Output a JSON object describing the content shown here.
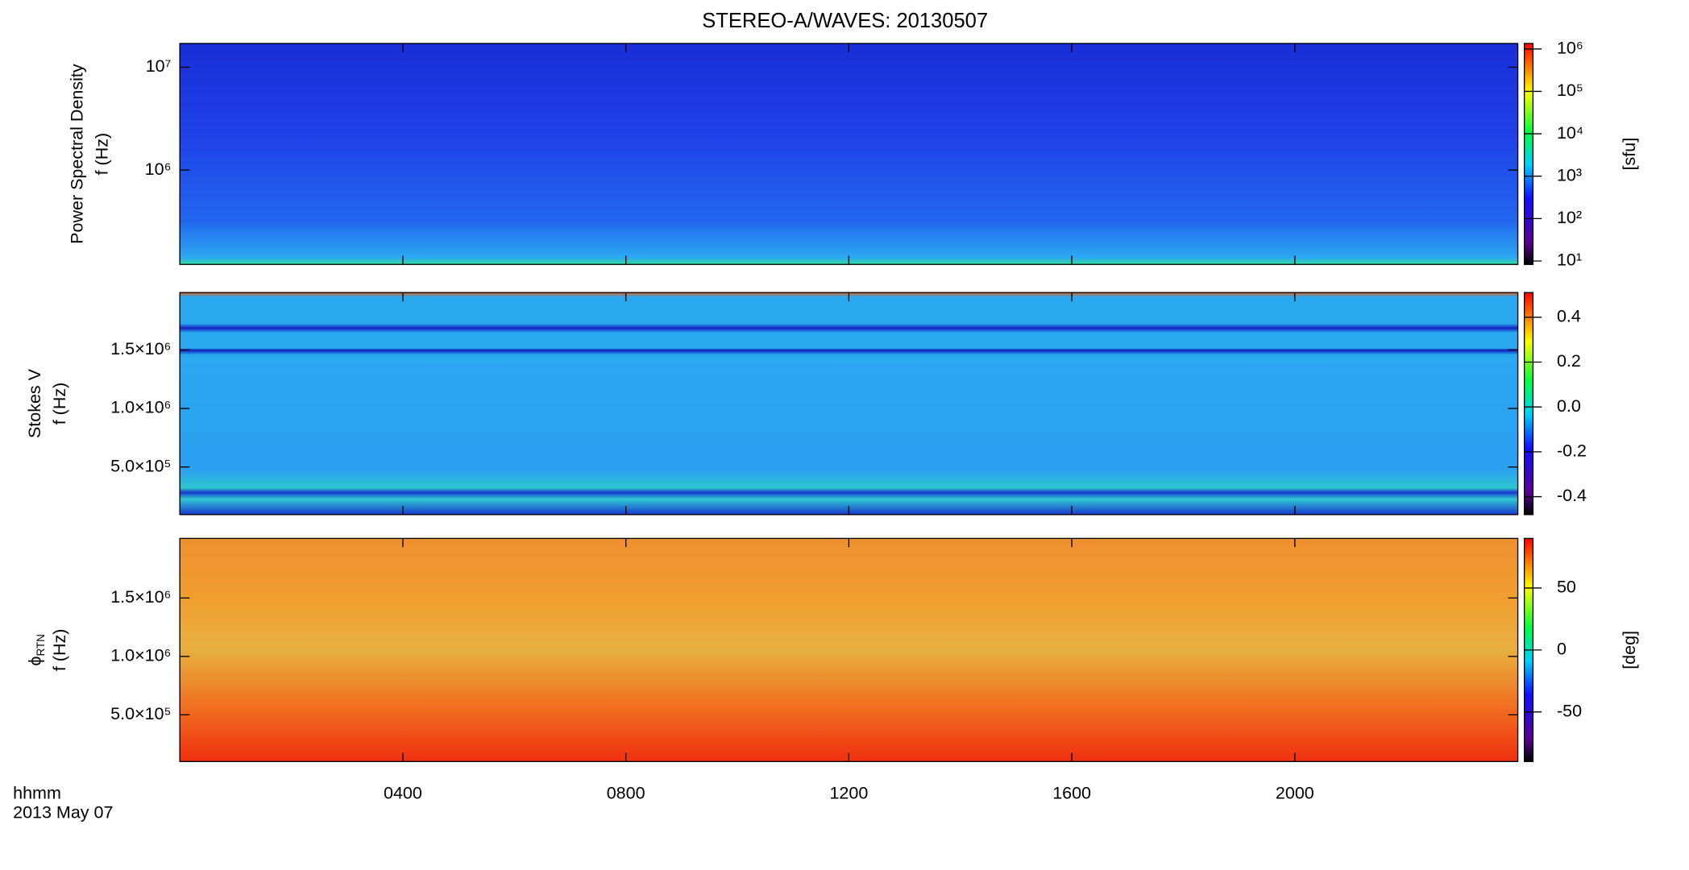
{
  "title": "STEREO-A/WAVES: 20130507",
  "x_axis_label": [
    "hhmm",
    "2013 May 07"
  ],
  "chart_data": [
    {
      "type": "heatmap",
      "ylabel": [
        "Power Spectral Density",
        "f (Hz)"
      ],
      "log_y": true,
      "ylim": [
        121000,
        17000000
      ],
      "yticks": [
        {
          "value": 1000000,
          "label": "10⁶"
        },
        {
          "value": 10000000,
          "label": "10⁷"
        }
      ],
      "colorbar": {
        "log": true,
        "lim": [
          8.3,
          1350000
        ],
        "ticks": [
          {
            "value": 10,
            "label": "10¹"
          },
          {
            "value": 100,
            "label": "10²"
          },
          {
            "value": 1000,
            "label": "10³"
          },
          {
            "value": 10000,
            "label": "10⁴"
          },
          {
            "value": 100000,
            "label": "10⁵"
          },
          {
            "value": 1000000,
            "label": "10⁶"
          }
        ],
        "label": "[sfu]"
      }
    },
    {
      "type": "heatmap",
      "ylabel": [
        "Stokes V",
        "f (Hz)"
      ],
      "log_y": false,
      "ylim": [
        93000,
        1990000
      ],
      "yticks": [
        {
          "value": 500000,
          "label": "5.0×10⁵"
        },
        {
          "value": 1000000,
          "label": "1.0×10⁶"
        },
        {
          "value": 1500000,
          "label": "1.5×10⁶"
        }
      ],
      "colorbar": {
        "log": false,
        "lim": [
          -0.48,
          0.51
        ],
        "ticks": [
          -0.4,
          -0.2,
          {
            "value": 0,
            "label": "0.0"
          },
          0.2,
          0.4
        ]
      }
    },
    {
      "type": "heatmap",
      "ylabel": [
        "ϕ",
        "RTN",
        "f (Hz)"
      ],
      "log_y": false,
      "ylim": [
        100000,
        2010000
      ],
      "yticks": [
        {
          "value": 500000,
          "label": "5.0×10⁵"
        },
        {
          "value": 1000000,
          "label": "1.0×10⁶"
        },
        {
          "value": 1500000,
          "label": "1.5×10⁶"
        }
      ],
      "xlim": [
        0,
        24
      ],
      "xticks": [
        {
          "value": 4,
          "label": "0400"
        },
        {
          "value": 8,
          "label": "0800"
        },
        {
          "value": 12,
          "label": "1200"
        },
        {
          "value": 16,
          "label": "1600"
        },
        {
          "value": 20,
          "label": "2000"
        }
      ],
      "colorbar": {
        "log": false,
        "lim": [
          -90,
          90
        ],
        "ticks": [
          -50,
          0,
          50
        ],
        "label": "[deg]"
      }
    }
  ]
}
